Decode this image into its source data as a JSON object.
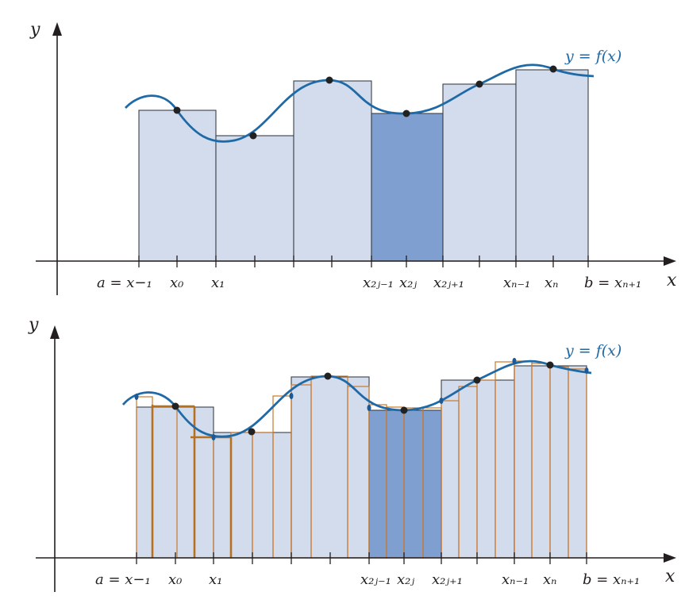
{
  "panels": [
    {
      "id": "top",
      "y_axis_label": "y",
      "x_axis_label": "x",
      "curve_label": "y = f(x)",
      "x_labels": [
        "a = x−₁",
        "x₀",
        "x₁",
        "x₂ⱼ₋₁",
        "x₂ⱼ",
        "x₂ⱼ₊₁",
        "xₙ₋₁",
        "xₙ",
        "b = xₙ₊₁"
      ]
    },
    {
      "id": "bottom",
      "y_axis_label": "y",
      "x_axis_label": "x",
      "curve_label": "y = f(x)",
      "x_labels": [
        "a = x−₁",
        "x₀",
        "x₁",
        "x₂ⱼ₋₁",
        "x₂ⱼ",
        "x₂ⱼ₊₁",
        "xₙ₋₁",
        "xₙ",
        "b = xₙ₊₁"
      ]
    }
  ],
  "colors": {
    "bar_fill": "#d2dced",
    "highlight_bar_fill": "#7f9fd0",
    "curve": "#1f6aa6",
    "refined_bars": "#c9782b"
  }
}
